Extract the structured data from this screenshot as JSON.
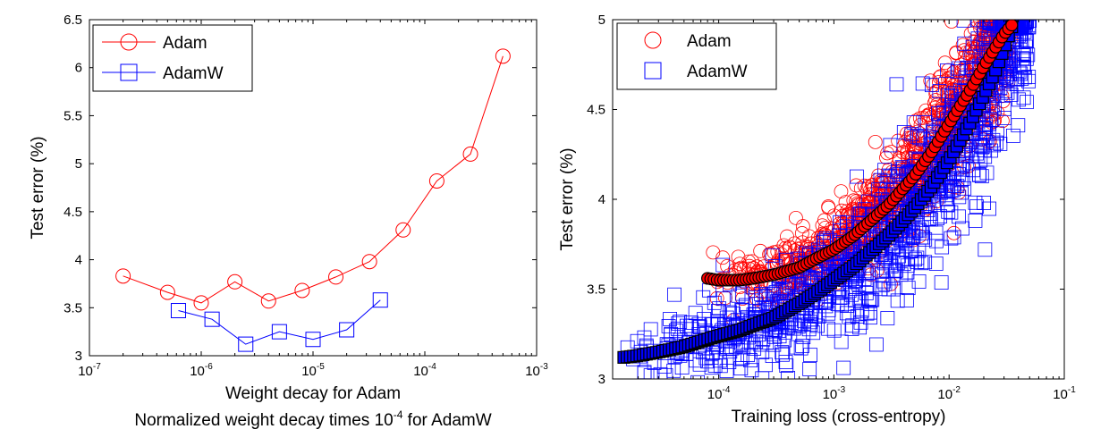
{
  "chart_data": [
    {
      "type": "line",
      "title": "",
      "xlabel": "Weight decay for Adam",
      "xlabel2": "Normalized weight decay times 10",
      "xlabel2_exp": "-4",
      "xlabel2_tail": " for AdamW",
      "ylabel": "Test error (%)",
      "xscale": "log",
      "xlim": [
        1e-07,
        0.001
      ],
      "ylim": [
        3,
        6.5
      ],
      "grid": false,
      "legend_position": "top-left",
      "xticks": [
        {
          "v": 1e-07,
          "base": "10",
          "exp": "-7"
        },
        {
          "v": 1e-06,
          "base": "10",
          "exp": "-6"
        },
        {
          "v": 1e-05,
          "base": "10",
          "exp": "-5"
        },
        {
          "v": 0.0001,
          "base": "10",
          "exp": "-4"
        },
        {
          "v": 0.001,
          "base": "10",
          "exp": "-3"
        }
      ],
      "yticks": [
        {
          "v": 3,
          "label": "3"
        },
        {
          "v": 3.5,
          "label": "3.5"
        },
        {
          "v": 4,
          "label": "4"
        },
        {
          "v": 4.5,
          "label": "4.5"
        },
        {
          "v": 5,
          "label": "5"
        },
        {
          "v": 5.5,
          "label": "5.5"
        },
        {
          "v": 6,
          "label": "6"
        },
        {
          "v": 6.5,
          "label": "6.5"
        }
      ],
      "series": [
        {
          "name": "Adam",
          "color": "#ff0000",
          "marker": "circle",
          "x": [
            2e-07,
            5e-07,
            1e-06,
            2e-06,
            4e-06,
            8e-06,
            1.6e-05,
            3.2e-05,
            6.4e-05,
            0.000128,
            0.000256,
            0.0005
          ],
          "y": [
            3.83,
            3.66,
            3.55,
            3.77,
            3.57,
            3.68,
            3.82,
            3.98,
            4.31,
            4.82,
            5.1,
            6.12
          ]
        },
        {
          "name": "AdamW",
          "color": "#0000ff",
          "marker": "square",
          "x": [
            6.25e-07,
            1.25e-06,
            2.5e-06,
            5e-06,
            1e-05,
            2e-05,
            4e-05
          ],
          "y": [
            3.47,
            3.38,
            3.12,
            3.25,
            3.17,
            3.27,
            3.58
          ]
        }
      ]
    },
    {
      "type": "scatter",
      "title": "",
      "xlabel": "Training loss (cross-entropy)",
      "ylabel": "Test error (%)",
      "xscale": "log",
      "xlim": [
        1.2e-05,
        0.1
      ],
      "ylim": [
        3,
        5
      ],
      "grid": false,
      "legend_position": "top-left",
      "xticks": [
        {
          "v": 0.0001,
          "base": "10",
          "exp": "-4"
        },
        {
          "v": 0.001,
          "base": "10",
          "exp": "-3"
        },
        {
          "v": 0.01,
          "base": "10",
          "exp": "-2"
        },
        {
          "v": 0.1,
          "base": "10",
          "exp": "-1"
        }
      ],
      "yticks": [
        {
          "v": 3,
          "label": "3"
        },
        {
          "v": 3.5,
          "label": "3.5"
        },
        {
          "v": 4,
          "label": "4"
        },
        {
          "v": 4.5,
          "label": "4.5"
        },
        {
          "v": 5,
          "label": "5"
        }
      ],
      "series": [
        {
          "name": "Adam",
          "color": "#ff0000",
          "marker": "circle",
          "x_range": [
            8e-05,
            0.035
          ],
          "mean_curve_x": [
            8e-05,
            0.0001,
            0.00015,
            0.0002,
            0.0003,
            0.0005,
            0.0007,
            0.001,
            0.0015,
            0.002,
            0.003,
            0.005,
            0.007,
            0.01,
            0.015,
            0.02,
            0.025,
            0.03,
            0.035
          ],
          "mean_curve_y": [
            3.56,
            3.55,
            3.55,
            3.56,
            3.58,
            3.62,
            3.67,
            3.72,
            3.8,
            3.87,
            3.97,
            4.13,
            4.26,
            4.42,
            4.6,
            4.74,
            4.84,
            4.92,
            4.97
          ],
          "spread": 0.15,
          "outliers": [
            {
              "x": 0.0105,
              "y": 4.99
            }
          ]
        },
        {
          "name": "AdamW",
          "color": "#0000ff",
          "marker": "square",
          "x_range": [
            1.5e-05,
            0.05
          ],
          "mean_curve_x": [
            1.5e-05,
            2e-05,
            3e-05,
            5e-05,
            7e-05,
            0.0001,
            0.00015,
            0.0002,
            0.0003,
            0.0005,
            0.0007,
            0.001,
            0.0015,
            0.002,
            0.003,
            0.005,
            0.007,
            0.01,
            0.015,
            0.02,
            0.025,
            0.03,
            0.035
          ],
          "mean_curve_y": [
            3.12,
            3.13,
            3.15,
            3.18,
            3.21,
            3.24,
            3.27,
            3.3,
            3.34,
            3.42,
            3.48,
            3.55,
            3.63,
            3.7,
            3.8,
            3.95,
            4.07,
            4.22,
            4.42,
            4.58,
            4.71,
            4.84,
            4.96
          ],
          "spread": 0.2,
          "outliers": [
            {
              "x": 0.0035,
              "y": 4.64
            },
            {
              "x": 0.0205,
              "y": 3.72
            },
            {
              "x": 0.0042,
              "y": 3.77
            }
          ]
        }
      ]
    }
  ]
}
